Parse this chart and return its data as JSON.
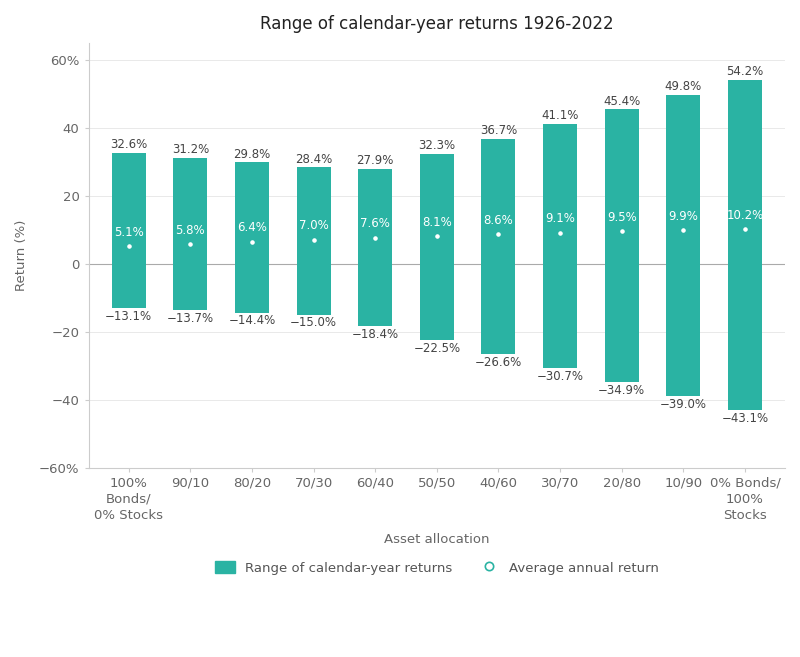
{
  "title": "Range of calendar-year returns 1926-2022",
  "xlabel": "Asset allocation",
  "ylabel": "Return (%)",
  "categories": [
    "100%\nBonds/\n0% Stocks",
    "90/10",
    "80/20",
    "70/30",
    "60/40",
    "50/50",
    "40/60",
    "30/70",
    "20/80",
    "10/90",
    "0% Bonds/\n100%\nStocks"
  ],
  "max_values": [
    32.6,
    31.2,
    29.8,
    28.4,
    27.9,
    32.3,
    36.7,
    41.1,
    45.4,
    49.8,
    54.2
  ],
  "min_values": [
    -13.1,
    -13.7,
    -14.4,
    -15.0,
    -18.4,
    -22.5,
    -26.6,
    -30.7,
    -34.9,
    -39.0,
    -43.1
  ],
  "avg_values": [
    5.1,
    5.8,
    6.4,
    7.0,
    7.6,
    8.1,
    8.6,
    9.1,
    9.5,
    9.9,
    10.2
  ],
  "bar_color": "#2ab3a3",
  "dot_color": "#ffffff",
  "dot_edge_color": "#2ab3a3",
  "background_color": "#ffffff",
  "ylim": [
    -60,
    65
  ],
  "yticks": [
    -60,
    -40,
    -20,
    0,
    20,
    40,
    60
  ],
  "ytick_labels": [
    "−60%",
    "−40",
    "−20",
    "0",
    "20",
    "40",
    "60%"
  ],
  "bar_width": 0.55,
  "title_fontsize": 12,
  "label_fontsize": 9.5,
  "tick_fontsize": 9.5,
  "annotation_fontsize": 8.5,
  "avg_annotation_fontsize": 8.5,
  "legend_fontsize": 9.5,
  "legend_range_label": "Range of calendar-year returns",
  "legend_avg_label": "Average annual return"
}
